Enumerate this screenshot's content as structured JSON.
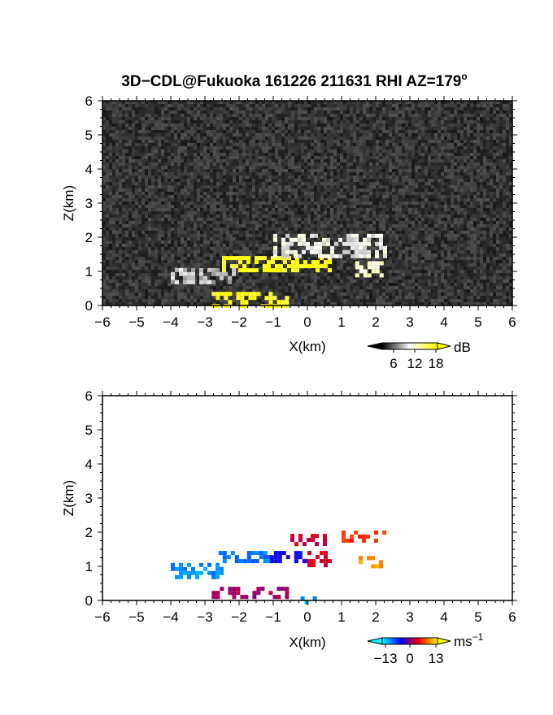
{
  "title": "3D−CDL@Fukuoka 161226 211631 RHI AZ=179",
  "title_degree": "o",
  "chart_data": [
    {
      "type": "heatmap",
      "xlabel": "X(km)",
      "ylabel": "Z(km)",
      "xlim": [
        -6,
        6
      ],
      "ylim": [
        0,
        6
      ],
      "x_ticks": [
        "−6",
        "−5",
        "−4",
        "−3",
        "−2",
        "−1",
        "0",
        "1",
        "2",
        "3",
        "4",
        "5",
        "6"
      ],
      "y_ticks": [
        "0",
        "1",
        "2",
        "3",
        "4",
        "5",
        "6"
      ],
      "background": "noise",
      "colorbar": {
        "unit": "dB",
        "ticks": [
          "6",
          "12",
          "18"
        ],
        "range": [
          0,
          21
        ],
        "colors": [
          "#000000",
          "#ffffff",
          "#ffff00"
        ]
      },
      "features": [
        {
          "x": [
            -2.5,
            0.6
          ],
          "z": [
            1.05,
            1.45
          ],
          "value": 20
        },
        {
          "x": [
            -4.0,
            -2.0
          ],
          "z": [
            0.7,
            1.1
          ],
          "value": 8
        },
        {
          "x": [
            -1.0,
            2.3
          ],
          "z": [
            1.5,
            2.1
          ],
          "value": 10
        },
        {
          "x": [
            1.4,
            2.2
          ],
          "z": [
            0.9,
            1.3
          ],
          "value": 12
        },
        {
          "x": [
            -2.8,
            -0.6
          ],
          "z": [
            0.0,
            0.4
          ],
          "value": 20
        }
      ]
    },
    {
      "type": "heatmap",
      "xlabel": "X(km)",
      "ylabel": "Z(km)",
      "xlim": [
        -6,
        6
      ],
      "ylim": [
        0,
        6
      ],
      "x_ticks": [
        "−6",
        "−5",
        "−4",
        "−3",
        "−2",
        "−1",
        "0",
        "1",
        "2",
        "3",
        "4",
        "5",
        "6"
      ],
      "y_ticks": [
        "0",
        "1",
        "2",
        "3",
        "4",
        "5",
        "6"
      ],
      "colorbar": {
        "unit": "ms",
        "unit_exp": "−1",
        "ticks": [
          "−13",
          "0",
          "13"
        ],
        "range": [
          -20,
          20
        ],
        "colors": [
          "#00ffff",
          "#0000ff",
          "#ff0000",
          "#ffff00"
        ]
      },
      "features": [
        {
          "x": [
            -4.0,
            -2.5
          ],
          "z": [
            0.7,
            1.1
          ],
          "value": -14
        },
        {
          "x": [
            -2.6,
            -1.1
          ],
          "z": [
            1.1,
            1.45
          ],
          "value": -13
        },
        {
          "x": [
            -1.1,
            0.0
          ],
          "z": [
            1.1,
            1.45
          ],
          "value": -6
        },
        {
          "x": [
            0.0,
            0.6
          ],
          "z": [
            1.0,
            1.45
          ],
          "value": 5
        },
        {
          "x": [
            1.5,
            2.1
          ],
          "z": [
            0.95,
            1.3
          ],
          "value": 14
        },
        {
          "x": [
            1.0,
            2.2
          ],
          "z": [
            1.7,
            2.05
          ],
          "value": 9
        },
        {
          "x": [
            -0.5,
            0.5
          ],
          "z": [
            1.6,
            1.95
          ],
          "value": 4
        },
        {
          "x": [
            -2.8,
            -0.6
          ],
          "z": [
            0.05,
            0.4
          ],
          "value": 2
        },
        {
          "x": [
            -0.2,
            0.2
          ],
          "z": [
            0.0,
            0.12
          ],
          "value": -15
        }
      ]
    }
  ]
}
